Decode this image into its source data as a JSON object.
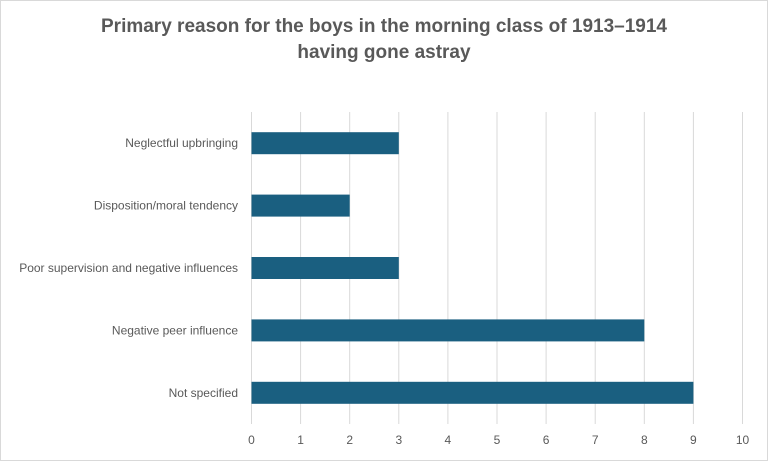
{
  "chart_data": {
    "type": "bar",
    "orientation": "horizontal",
    "title_lines": [
      "Primary reason for the boys in the morning class of 1913–1914",
      "having gone astray"
    ],
    "title": "Primary reason for the boys in the morning class of 1913–1914 having gone astray",
    "categories": [
      "Neglectful upbringing",
      "Disposition/moral tendency",
      "Poor supervision and negative influences",
      "Negative peer influence",
      "Not specified"
    ],
    "values": [
      3,
      2,
      3,
      8,
      9
    ],
    "xlabel": "",
    "ylabel": "",
    "xlim": [
      0,
      10
    ],
    "xticks": [
      "0",
      "1",
      "2",
      "3",
      "4",
      "5",
      "6",
      "7",
      "8",
      "9",
      "10"
    ],
    "grid": "vertical",
    "legend": "none",
    "bar_color": "#1a5f80"
  }
}
